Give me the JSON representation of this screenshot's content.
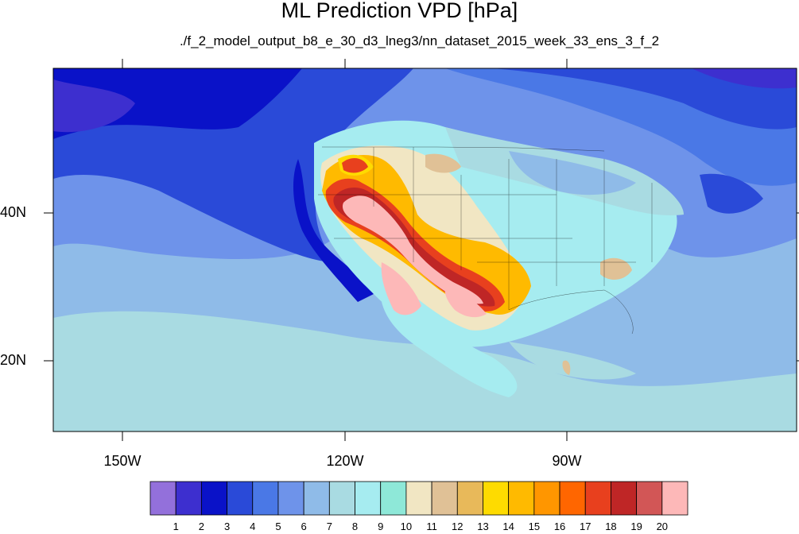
{
  "title": "ML Prediction VPD [hPa]",
  "subtitle": "./f_2_model_output_b8_e_30_d3_lneg3/nn_dataset_2015_week_33_ens_3_f_2",
  "lat_labels": [
    "40N",
    "20N"
  ],
  "lon_labels": [
    "150W",
    "120W",
    "90W"
  ],
  "colorbar": {
    "labels": [
      "1",
      "2",
      "3",
      "4",
      "5",
      "6",
      "7",
      "8",
      "9",
      "10",
      "11",
      "12",
      "13",
      "14",
      "15",
      "16",
      "17",
      "18",
      "19",
      "20"
    ],
    "colors": [
      "#9370db",
      "#3d2fcf",
      "#0a12c8",
      "#2a4ad8",
      "#4a78e6",
      "#6e93ea",
      "#8fbbe8",
      "#a9dbe2",
      "#a6ecf0",
      "#8ee8d8",
      "#f1e6c3",
      "#e0c196",
      "#e8b95a",
      "#fedb00",
      "#ffba00",
      "#ff9600",
      "#ff6600",
      "#e8401e",
      "#bf2626",
      "#d25656",
      "#fdb8b8"
    ]
  },
  "map": {
    "ocean_color": "#8fbbe8",
    "north_pacific_color": "#2a4ad8",
    "hot_color": "#fdb8b8"
  }
}
